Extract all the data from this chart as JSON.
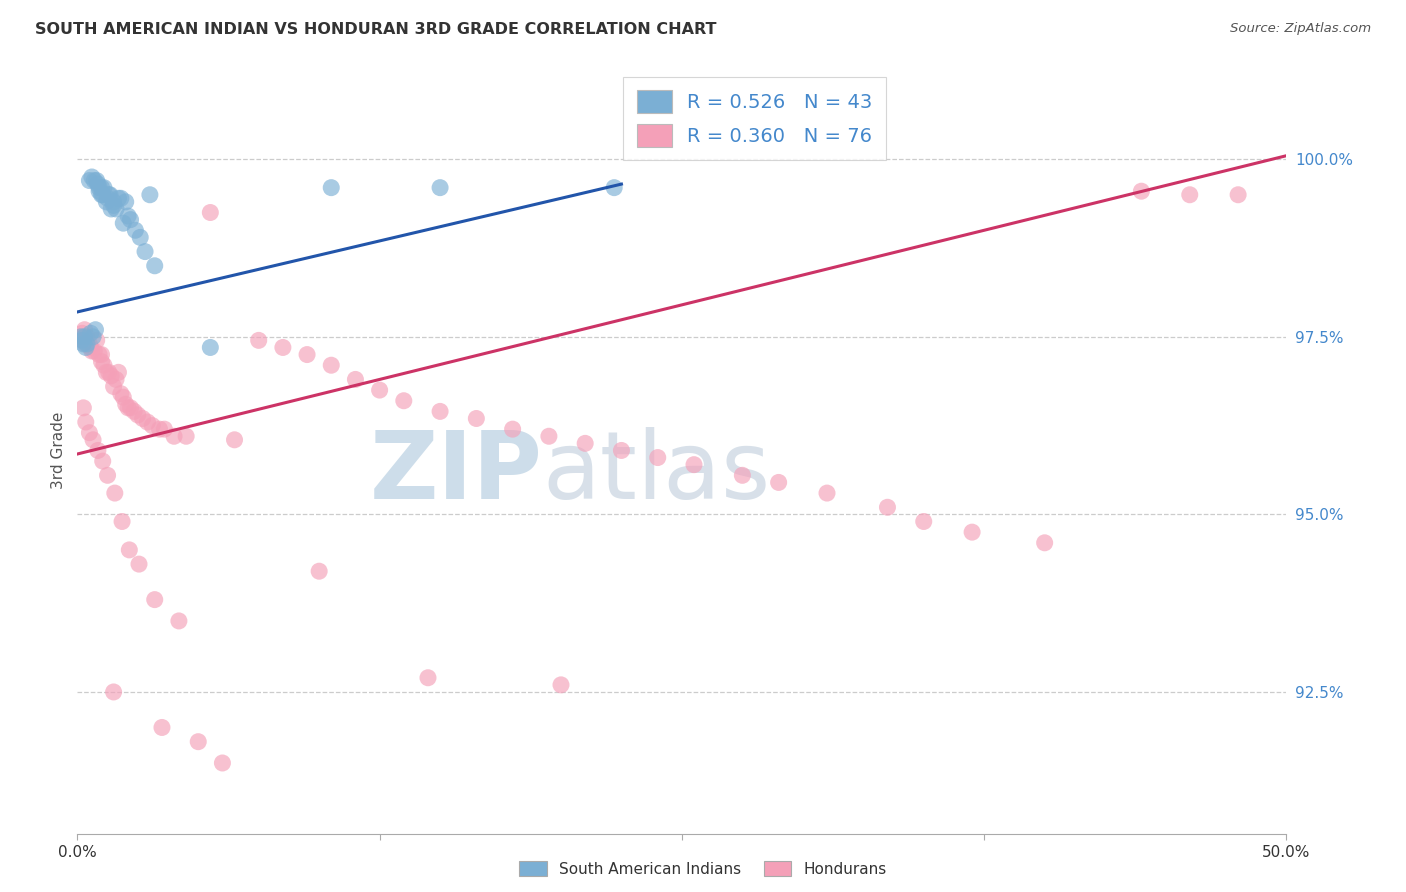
{
  "title": "SOUTH AMERICAN INDIAN VS HONDURAN 3RD GRADE CORRELATION CHART",
  "source": "Source: ZipAtlas.com",
  "ylabel": "3rd Grade",
  "legend_label1": "South American Indians",
  "legend_label2": "Hondurans",
  "R1": 0.526,
  "N1": 43,
  "R2": 0.36,
  "N2": 76,
  "blue_color": "#7bafd4",
  "pink_color": "#f4a0b8",
  "blue_line_color": "#2255aa",
  "pink_line_color": "#cc3366",
  "title_color": "#333333",
  "axis_label_color": "#4488cc",
  "xlim": [
    0.0,
    50.0
  ],
  "ylim": [
    90.5,
    101.3
  ],
  "yticks": [
    100.0,
    97.5,
    95.0,
    92.5
  ],
  "ytick_labels": [
    "100.0%",
    "97.5%",
    "95.0%",
    "92.5%"
  ],
  "blue_line_x": [
    0.0,
    22.5
  ],
  "blue_line_y": [
    97.85,
    99.65
  ],
  "pink_line_x": [
    0.0,
    50.0
  ],
  "pink_line_y": [
    95.85,
    100.05
  ],
  "blue_scatter_x": [
    0.15,
    0.2,
    0.25,
    0.3,
    0.35,
    0.4,
    0.5,
    0.55,
    0.6,
    0.65,
    0.7,
    0.75,
    0.8,
    0.85,
    0.9,
    0.9,
    1.0,
    1.0,
    1.05,
    1.1,
    1.2,
    1.25,
    1.3,
    1.35,
    1.4,
    1.5,
    1.5,
    1.6,
    1.7,
    1.8,
    1.9,
    2.0,
    2.1,
    2.2,
    2.4,
    2.6,
    2.8,
    3.0,
    3.2,
    5.5,
    10.5,
    15.0,
    22.2
  ],
  "blue_scatter_y": [
    97.5,
    97.45,
    97.4,
    97.5,
    97.35,
    97.4,
    99.7,
    97.55,
    99.75,
    97.5,
    99.7,
    97.6,
    99.7,
    99.65,
    99.6,
    99.55,
    99.5,
    99.6,
    99.5,
    99.6,
    99.4,
    99.45,
    99.5,
    99.5,
    99.3,
    99.35,
    99.4,
    99.3,
    99.45,
    99.45,
    99.1,
    99.4,
    99.2,
    99.15,
    99.0,
    98.9,
    98.7,
    99.5,
    98.5,
    97.35,
    99.6,
    99.6,
    99.6
  ],
  "pink_scatter_x": [
    0.15,
    0.2,
    0.25,
    0.3,
    0.35,
    0.4,
    0.5,
    0.55,
    0.6,
    0.7,
    0.8,
    0.9,
    1.0,
    1.0,
    1.1,
    1.2,
    1.3,
    1.4,
    1.5,
    1.6,
    1.7,
    1.8,
    1.9,
    2.0,
    2.1,
    2.2,
    2.35,
    2.5,
    2.7,
    2.9,
    3.1,
    3.4,
    3.6,
    4.0,
    4.5,
    5.5,
    6.5,
    7.5,
    8.5,
    9.5,
    10.5,
    11.5,
    12.5,
    13.5,
    15.0,
    16.5,
    18.0,
    19.5,
    21.0,
    22.5,
    24.0,
    25.5,
    27.5,
    29.0,
    31.0,
    33.5,
    35.0,
    37.0,
    40.0,
    44.0,
    46.0,
    48.0,
    0.25,
    0.35,
    0.5,
    0.65,
    0.85,
    1.05,
    1.25,
    1.55,
    1.85,
    2.15,
    2.55,
    3.2,
    4.2,
    10.0
  ],
  "pink_scatter_y": [
    97.5,
    97.55,
    97.45,
    97.6,
    97.4,
    97.5,
    97.4,
    97.35,
    97.3,
    97.3,
    97.45,
    97.25,
    97.25,
    97.15,
    97.1,
    97.0,
    97.0,
    96.95,
    96.8,
    96.9,
    97.0,
    96.7,
    96.65,
    96.55,
    96.5,
    96.5,
    96.45,
    96.4,
    96.35,
    96.3,
    96.25,
    96.2,
    96.2,
    96.1,
    96.1,
    99.25,
    96.05,
    97.45,
    97.35,
    97.25,
    97.1,
    96.9,
    96.75,
    96.6,
    96.45,
    96.35,
    96.2,
    96.1,
    96.0,
    95.9,
    95.8,
    95.7,
    95.55,
    95.45,
    95.3,
    95.1,
    94.9,
    94.75,
    94.6,
    99.55,
    99.5,
    99.5,
    96.5,
    96.3,
    96.15,
    96.05,
    95.9,
    95.75,
    95.55,
    95.3,
    94.9,
    94.5,
    94.3,
    93.8,
    93.5,
    94.2
  ],
  "pink_scatter_outliers_x": [
    1.5,
    3.5,
    5.0,
    6.0,
    14.5,
    20.0
  ],
  "pink_scatter_outliers_y": [
    92.5,
    92.0,
    91.8,
    91.5,
    92.7,
    92.6
  ]
}
